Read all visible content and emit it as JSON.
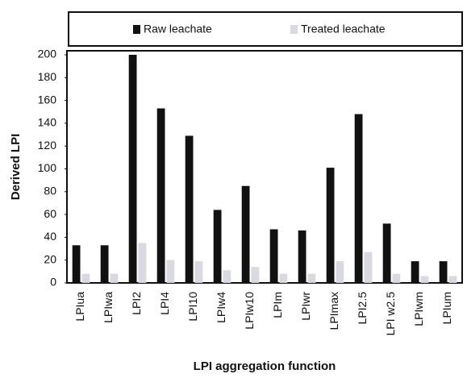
{
  "chart_data": {
    "type": "bar",
    "x_label": "LPI aggregation function",
    "y_label": "Derived LPI",
    "categories": [
      "LPIua",
      "LPIwa",
      "LPI2",
      "LPI4",
      "LPI10",
      "LPIw4",
      "LPIw10",
      "LPIm",
      "LPIwr",
      "LPImax",
      "LPI2.5",
      "LPI w2.5",
      "LPIwm",
      "LPIum"
    ],
    "series": [
      {
        "name": "Raw leachate",
        "color": "#111111",
        "values": [
          33,
          33,
          200,
          153,
          129,
          64,
          85,
          47,
          46,
          101,
          148,
          52,
          19,
          19
        ]
      },
      {
        "name": "Treated leachate",
        "color": "#d9d9e1",
        "values": [
          8,
          8,
          35,
          20,
          19,
          11,
          14,
          8,
          8,
          19,
          27,
          8,
          6,
          6
        ]
      }
    ],
    "ylim": [
      0,
      200
    ],
    "yticks": [
      0,
      20,
      40,
      60,
      80,
      100,
      120,
      140,
      160,
      180,
      200
    ],
    "grid": false,
    "legend": "top"
  }
}
